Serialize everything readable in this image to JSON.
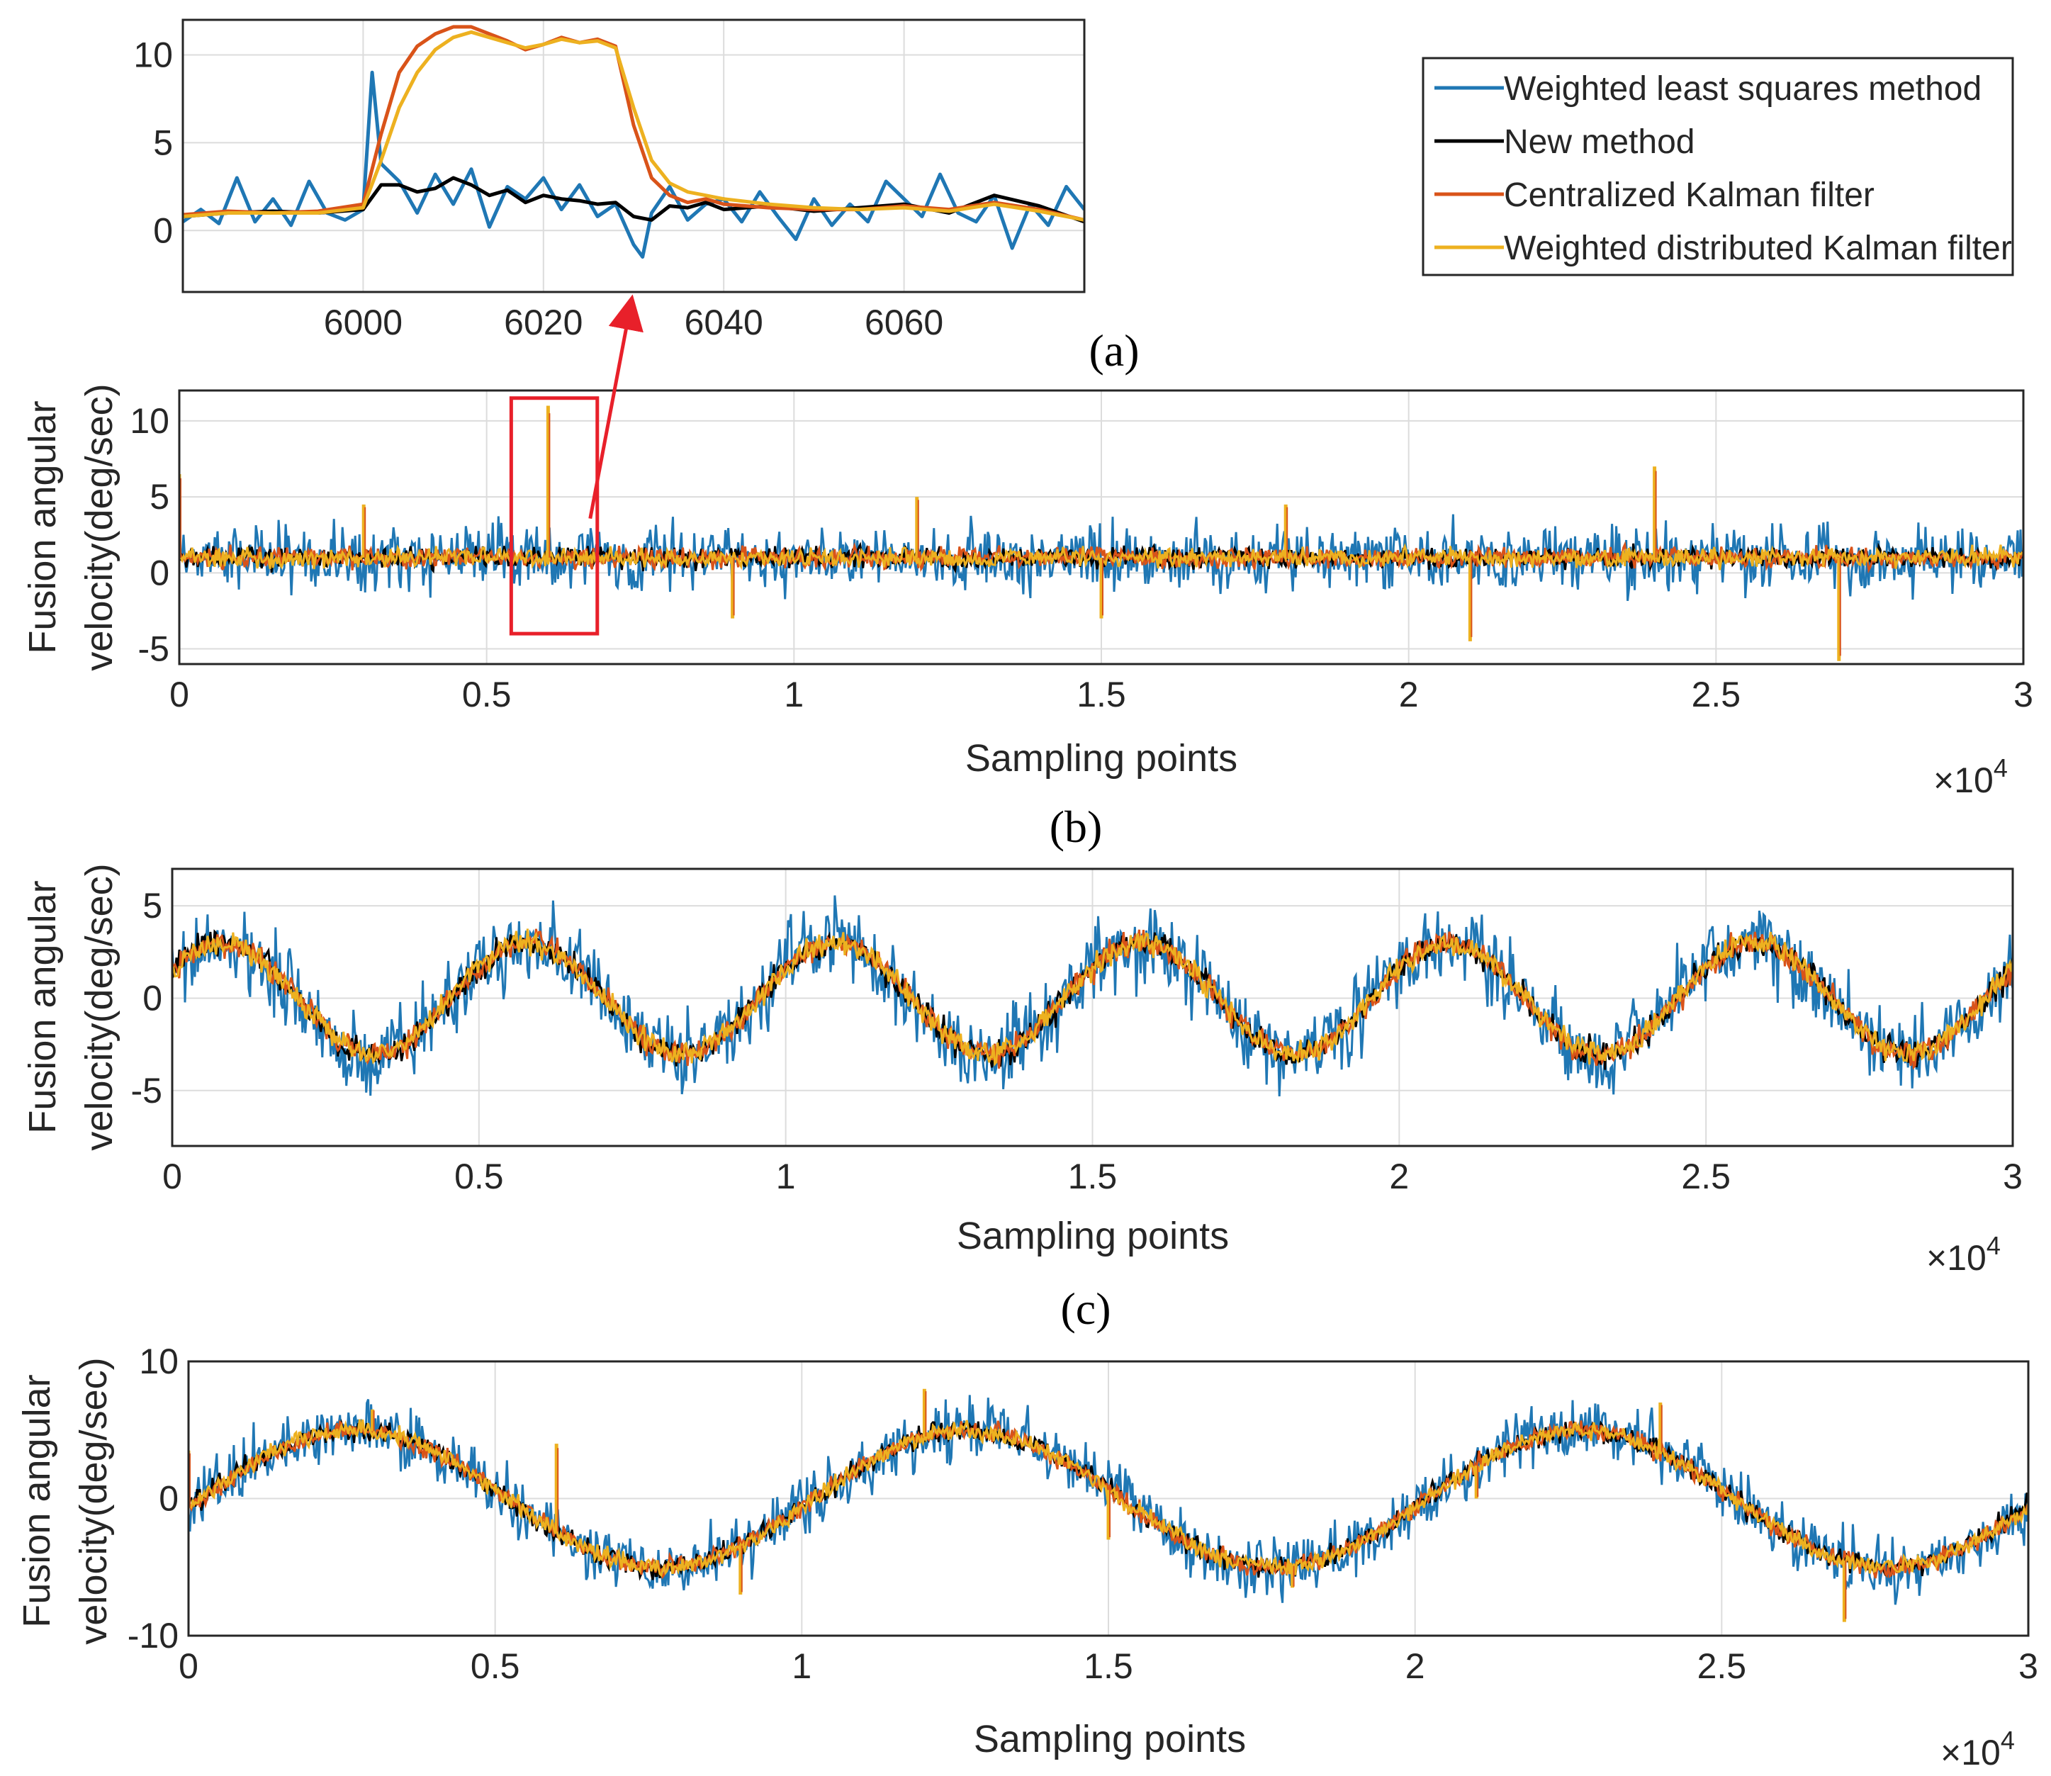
{
  "figure": {
    "panel_labels": [
      "(a)",
      "(b)",
      "(c)"
    ],
    "exponent_label_base": "×10",
    "exponent_label_power": "4",
    "legend": {
      "entries": [
        {
          "label": "Weighted least squares method",
          "color": "#1f77b4"
        },
        {
          "label": "New method",
          "color": "#000000"
        },
        {
          "label": "Centralized Kalman filter",
          "color": "#d95319"
        },
        {
          "label": "Weighted distributed Kalman filter",
          "color": "#edb120"
        }
      ]
    },
    "highlight_color": "#e8202a"
  },
  "chart_data": [
    {
      "id": "inset",
      "type": "line",
      "title": "",
      "xlabel": "",
      "ylabel": "",
      "xlim": [
        5980,
        6080
      ],
      "ylim": [
        -3.5,
        12
      ],
      "xticks": [
        6000,
        6020,
        6040,
        6060
      ],
      "yticks": [
        0,
        5,
        10
      ],
      "series": [
        {
          "name": "Weighted least squares method",
          "color": "#1f77b4",
          "x": [
            5980,
            5982,
            5984,
            5986,
            5988,
            5990,
            5992,
            5994,
            5996,
            5998,
            6000,
            6001,
            6002,
            6004,
            6006,
            6008,
            6010,
            6012,
            6014,
            6016,
            6018,
            6020,
            6022,
            6024,
            6026,
            6028,
            6030,
            6031,
            6032,
            6034,
            6036,
            6038,
            6040,
            6042,
            6044,
            6046,
            6048,
            6050,
            6052,
            6054,
            6056,
            6058,
            6060,
            6062,
            6064,
            6066,
            6068,
            6070,
            6072,
            6074,
            6076,
            6078,
            6080
          ],
          "y": [
            0.5,
            1.2,
            0.4,
            3.0,
            0.5,
            1.8,
            0.3,
            2.8,
            1.0,
            0.6,
            1.2,
            9.0,
            3.8,
            2.8,
            1.0,
            3.2,
            1.5,
            3.5,
            0.2,
            2.5,
            1.8,
            3.0,
            1.2,
            2.6,
            0.8,
            1.5,
            -0.8,
            -1.5,
            1.0,
            2.5,
            0.6,
            1.5,
            1.8,
            0.5,
            2.2,
            0.8,
            -0.5,
            1.8,
            0.3,
            1.5,
            0.5,
            2.8,
            1.8,
            0.8,
            3.2,
            1.0,
            0.5,
            2.0,
            -1.0,
            1.5,
            0.3,
            2.5,
            1.2
          ]
        },
        {
          "name": "New method",
          "color": "#000000",
          "x": [
            5980,
            5985,
            5990,
            5995,
            6000,
            6002,
            6004,
            6006,
            6008,
            6010,
            6012,
            6014,
            6016,
            6018,
            6020,
            6022,
            6024,
            6026,
            6028,
            6030,
            6032,
            6034,
            6036,
            6038,
            6040,
            6045,
            6050,
            6055,
            6060,
            6065,
            6070,
            6075,
            6080
          ],
          "y": [
            0.8,
            1.0,
            1.1,
            1.0,
            1.2,
            2.6,
            2.6,
            2.2,
            2.4,
            3.0,
            2.6,
            2.0,
            2.3,
            1.6,
            2.0,
            1.8,
            1.7,
            1.5,
            1.6,
            0.8,
            0.6,
            1.4,
            1.3,
            1.6,
            1.2,
            1.4,
            1.1,
            1.3,
            1.5,
            1.0,
            2.0,
            1.4,
            0.5
          ]
        },
        {
          "name": "Centralized Kalman filter",
          "color": "#d95319",
          "x": [
            5980,
            5985,
            5990,
            5995,
            6000,
            6002,
            6004,
            6006,
            6008,
            6010,
            6012,
            6014,
            6016,
            6018,
            6020,
            6022,
            6024,
            6026,
            6028,
            6030,
            6032,
            6034,
            6036,
            6038,
            6040,
            6045,
            6050,
            6055,
            6060,
            6065,
            6070,
            6075,
            6080
          ],
          "y": [
            0.9,
            1.1,
            1.0,
            1.1,
            1.5,
            5.5,
            9.0,
            10.5,
            11.2,
            11.6,
            11.6,
            11.2,
            10.8,
            10.3,
            10.6,
            11.0,
            10.7,
            10.9,
            10.5,
            6.0,
            3.0,
            2.0,
            1.6,
            1.8,
            1.5,
            1.3,
            1.2,
            1.2,
            1.4,
            1.2,
            1.6,
            1.2,
            0.6
          ]
        },
        {
          "name": "Weighted distributed Kalman filter",
          "color": "#edb120",
          "x": [
            5980,
            5985,
            5990,
            5995,
            6000,
            6002,
            6004,
            6006,
            6008,
            6010,
            6012,
            6014,
            6016,
            6018,
            6020,
            6022,
            6024,
            6026,
            6028,
            6030,
            6032,
            6034,
            6036,
            6038,
            6040,
            6045,
            6050,
            6055,
            6060,
            6065,
            6070,
            6075,
            6080
          ],
          "y": [
            0.8,
            1.0,
            1.0,
            1.0,
            1.3,
            4.0,
            7.0,
            9.0,
            10.3,
            11.0,
            11.3,
            11.0,
            10.7,
            10.4,
            10.6,
            10.9,
            10.7,
            10.8,
            10.4,
            7.0,
            4.0,
            2.7,
            2.2,
            2.0,
            1.8,
            1.5,
            1.3,
            1.2,
            1.3,
            1.1,
            1.5,
            1.1,
            0.6
          ]
        }
      ]
    },
    {
      "id": "a",
      "type": "line",
      "title": "(a)",
      "xlabel": "Sampling points",
      "ylabel": "Fusion angular velocity(deg/sec)",
      "xlim": [
        0,
        3
      ],
      "ylim": [
        -6,
        12
      ],
      "xticks": [
        0,
        0.5,
        1,
        1.5,
        2,
        2.5,
        3
      ],
      "xtick_labels": [
        "0",
        "0.5",
        "1",
        "1.5",
        "2",
        "2.5",
        "3"
      ],
      "yticks": [
        -5,
        0,
        5,
        10
      ],
      "x_scale_note": "×10^4",
      "signal": {
        "form": "constant",
        "level": 1.0,
        "wls_noise_halfwidth": 2.6,
        "new_noise_halfwidth": 0.8,
        "kf_noise_halfwidth": 0.8
      },
      "spikes": [
        {
          "x": 0.0,
          "y": 6.5
        },
        {
          "x": 0.3,
          "y": 4.5
        },
        {
          "x": 0.6,
          "y": 11.0
        },
        {
          "x": 0.9,
          "y": -3.0
        },
        {
          "x": 1.2,
          "y": 5.0
        },
        {
          "x": 1.5,
          "y": -3.0
        },
        {
          "x": 1.8,
          "y": 4.5
        },
        {
          "x": 2.1,
          "y": -4.5
        },
        {
          "x": 2.4,
          "y": 7.0
        },
        {
          "x": 2.7,
          "y": -5.8
        }
      ],
      "zoom_box": {
        "x": [
          0.54,
          0.68
        ],
        "y": [
          -4,
          11.5
        ]
      }
    },
    {
      "id": "b",
      "type": "line",
      "title": "(b)",
      "xlabel": "Sampling points",
      "ylabel": "Fusion angular velocity(deg/sec)",
      "xlim": [
        0,
        3
      ],
      "ylim": [
        -8,
        7
      ],
      "xticks": [
        0,
        0.5,
        1,
        1.5,
        2,
        2.5,
        3
      ],
      "xtick_labels": [
        "0",
        "0.5",
        "1",
        "1.5",
        "2",
        "2.5",
        "3"
      ],
      "yticks": [
        -5,
        0,
        5
      ],
      "x_scale_note": "×10^4",
      "signal": {
        "form": "sine",
        "amplitude": 3.0,
        "period": 0.5,
        "phase_peak_x": 0.58,
        "offset": 0.0,
        "wls_noise_halfwidth": 2.6,
        "new_noise_halfwidth": 0.85,
        "kf_noise_halfwidth": 0.85
      },
      "spikes": []
    },
    {
      "id": "c",
      "type": "line",
      "title": "(c)",
      "xlabel": "Sampling points",
      "ylabel": "Fusion angular velocity(deg/sec)",
      "xlim": [
        0,
        3
      ],
      "ylim": [
        -10,
        10
      ],
      "xticks": [
        0,
        0.5,
        1,
        1.5,
        2,
        2.5,
        3
      ],
      "xtick_labels": [
        "0",
        "0.5",
        "1",
        "1.5",
        "2",
        "2.5",
        "3"
      ],
      "yticks": [
        -10,
        0,
        10
      ],
      "x_scale_note": "×10^4",
      "signal": {
        "form": "sine",
        "amplitude": 5.0,
        "period": 1.0,
        "phase_peak_x": 0.27,
        "offset": 0.0,
        "wls_noise_halfwidth": 2.6,
        "new_noise_halfwidth": 0.9,
        "kf_noise_halfwidth": 0.9
      },
      "spikes": [
        {
          "x": 0.0,
          "y": 3.5
        },
        {
          "x": 0.3,
          "y": 6.5
        },
        {
          "x": 0.6,
          "y": 4.0
        },
        {
          "x": 0.9,
          "y": -7.0
        },
        {
          "x": 1.2,
          "y": 8.0
        },
        {
          "x": 1.5,
          "y": -3.0
        },
        {
          "x": 1.8,
          "y": -6.5
        },
        {
          "x": 2.1,
          "y": 0.0
        },
        {
          "x": 2.4,
          "y": 7.0
        },
        {
          "x": 2.7,
          "y": -9.0
        }
      ]
    }
  ]
}
